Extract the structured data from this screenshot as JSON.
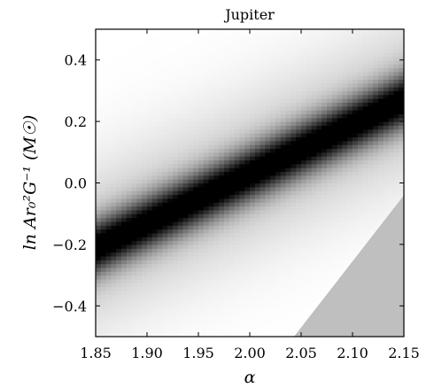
{
  "chart_data": {
    "type": "heatmap",
    "title": "Jupiter",
    "xlabel": "α",
    "ylabel": "ln Ar₀²G⁻¹ (M☉)",
    "xlim": [
      1.85,
      2.15
    ],
    "ylim": [
      -0.5,
      0.5
    ],
    "x_ticks": [
      "1.85",
      "1.90",
      "1.95",
      "2.00",
      "2.05",
      "2.10",
      "2.15"
    ],
    "y_ticks": [
      "−0.4",
      "−0.2",
      "0.0",
      "0.2",
      "0.4"
    ],
    "colormap": "grayscale",
    "ridge": {
      "description": "dark band of maximum density",
      "points": [
        {
          "x": 1.85,
          "y": -0.21
        },
        {
          "x": 2.15,
          "y": 0.27
        }
      ],
      "width_y": 0.06
    },
    "excluded_region": {
      "color": "#bfbfbf",
      "vertices": [
        {
          "x": 2.043,
          "y": -0.5
        },
        {
          "x": 2.15,
          "y": -0.04
        },
        {
          "x": 2.15,
          "y": -0.5
        }
      ]
    },
    "grid": false
  }
}
